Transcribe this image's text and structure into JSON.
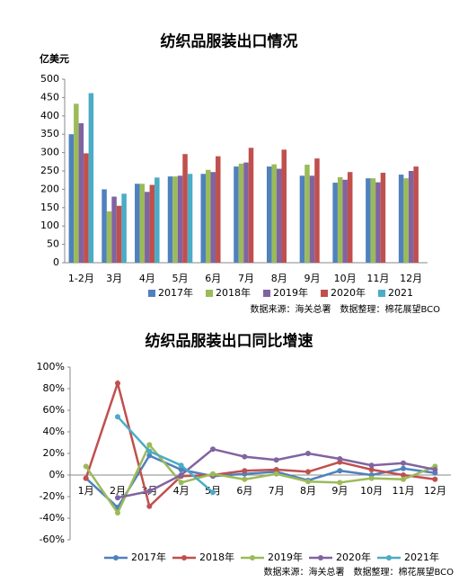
{
  "chart_data": [
    {
      "type": "bar",
      "title": "纺织品服装出口情况",
      "y_label": "亿美元",
      "categories": [
        "1-2月",
        "3月",
        "4月",
        "5月",
        "6月",
        "7月",
        "8月",
        "9月",
        "10月",
        "11月",
        "12月"
      ],
      "series": [
        {
          "name": "2017年",
          "color": "#4f81bd",
          "values": [
            350,
            200,
            215,
            235,
            242,
            262,
            262,
            237,
            218,
            230,
            240
          ]
        },
        {
          "name": "2018年",
          "color": "#9bbb59",
          "values": [
            433,
            140,
            215,
            235,
            253,
            270,
            268,
            267,
            233,
            230,
            230
          ]
        },
        {
          "name": "2019年",
          "color": "#8064a2",
          "values": [
            380,
            180,
            193,
            237,
            247,
            273,
            256,
            237,
            226,
            219,
            250
          ]
        },
        {
          "name": "2020年",
          "color": "#c0504d",
          "values": [
            298,
            155,
            212,
            296,
            290,
            313,
            308,
            284,
            247,
            245,
            262
          ]
        },
        {
          "name": "2021",
          "color": "#4bacc6",
          "values": [
            462,
            188,
            232,
            242,
            null,
            null,
            null,
            null,
            null,
            null,
            null
          ]
        }
      ],
      "ylim": [
        0,
        500
      ],
      "yticks": [
        0,
        50,
        100,
        150,
        200,
        250,
        300,
        350,
        400,
        450,
        500
      ],
      "grid": false,
      "source": "数据来源：海关总署　数据整理：棉花展望BCO"
    },
    {
      "type": "line",
      "title": "纺织品服装出口同比增速",
      "categories": [
        "1月",
        "2月",
        "3月",
        "4月",
        "5月",
        "6月",
        "7月",
        "8月",
        "9月",
        "10月",
        "11月",
        "12月"
      ],
      "series": [
        {
          "name": "2017年",
          "color": "#4f81bd",
          "values": [
            -3,
            -30,
            18,
            5,
            -1,
            1,
            3,
            -5,
            4,
            0,
            6,
            2
          ]
        },
        {
          "name": "2018年",
          "color": "#c0504d",
          "values": [
            -3,
            85,
            -29,
            -1,
            0,
            4,
            5,
            3,
            12,
            5,
            0,
            -4
          ]
        },
        {
          "name": "2019年",
          "color": "#9bbb59",
          "values": [
            8,
            -35,
            28,
            -7,
            1,
            -4,
            1,
            -6,
            -7,
            -3,
            -4,
            8
          ]
        },
        {
          "name": "2020年",
          "color": "#8064a2",
          "values": [
            null,
            -21,
            -15,
            0,
            24,
            17,
            14,
            20,
            15,
            9,
            11,
            5
          ]
        },
        {
          "name": "2021年",
          "color": "#4bacc6",
          "values": [
            null,
            54,
            22,
            9,
            -16,
            null,
            null,
            null,
            null,
            null,
            null,
            null
          ]
        }
      ],
      "ylim": [
        -60,
        100
      ],
      "yticks": [
        {
          "value": -60,
          "label": "-60%"
        },
        {
          "value": -40,
          "label": "-40%"
        },
        {
          "value": -20,
          "label": "-20%"
        },
        {
          "value": 0,
          "label": "0%"
        },
        {
          "value": 20,
          "label": "20%"
        },
        {
          "value": 40,
          "label": "40%"
        },
        {
          "value": 60,
          "label": "60%"
        },
        {
          "value": 80,
          "label": "80%"
        },
        {
          "value": 100,
          "label": "100%"
        }
      ],
      "grid": false,
      "source": "数据来源：海关总署　数据整理：棉花展望BCO"
    }
  ]
}
